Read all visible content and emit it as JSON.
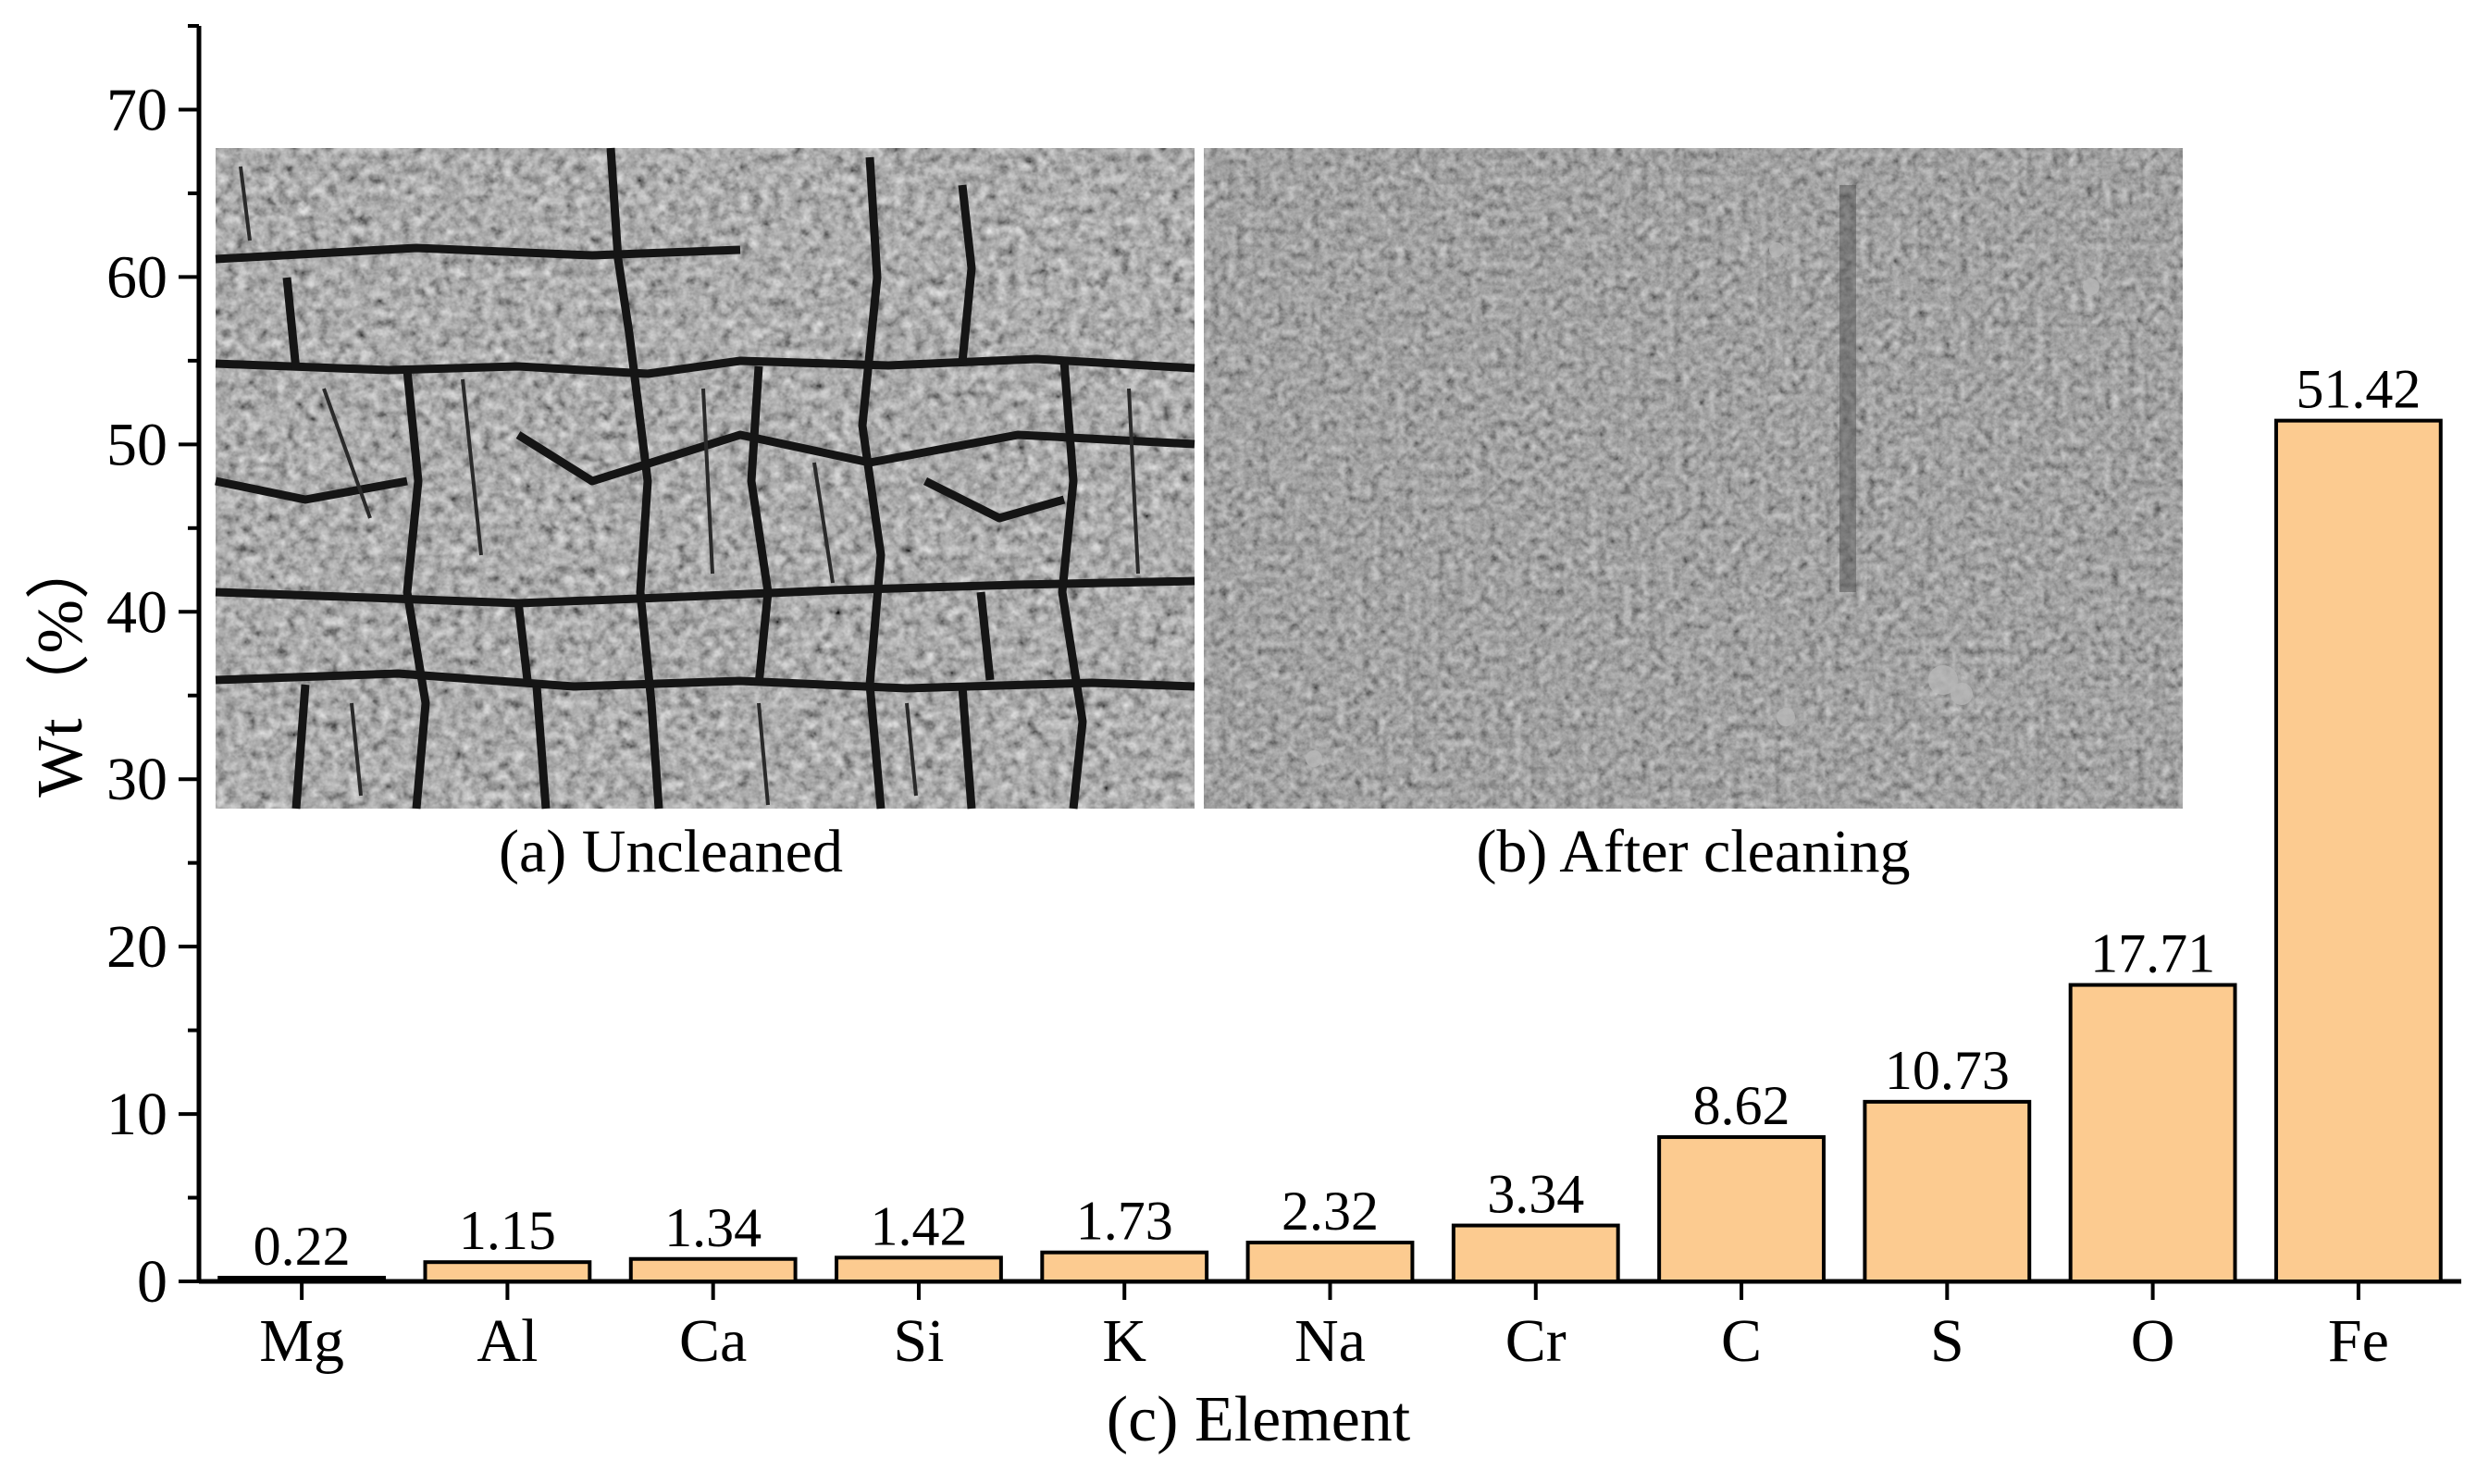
{
  "chart_data": {
    "type": "bar",
    "categories": [
      "Mg",
      "Al",
      "Ca",
      "Si",
      "K",
      "Na",
      "Cr",
      "C",
      "S",
      "O",
      "Fe"
    ],
    "values": [
      0.22,
      1.15,
      1.34,
      1.42,
      1.73,
      2.32,
      3.34,
      8.62,
      10.73,
      17.71,
      51.42
    ],
    "value_labels": [
      "0.22",
      "1.15",
      "1.34",
      "1.42",
      "1.73",
      "2.32",
      "3.34",
      "8.62",
      "10.73",
      "17.71",
      "51.42"
    ],
    "ylabel": "Wt（%）",
    "xlabel": "(c) Element",
    "ylim": [
      0,
      75
    ],
    "y_ticks": [
      0,
      10,
      20,
      30,
      40,
      50,
      60,
      70
    ],
    "grid": false,
    "bar_color": "#fccb90"
  },
  "insets": [
    {
      "caption": "(a) Uncleaned",
      "image": "SEM micrograph of cracked corrosion layer"
    },
    {
      "caption": "(b) After cleaning",
      "image": "SEM micrograph of cleaned rough surface"
    }
  ]
}
